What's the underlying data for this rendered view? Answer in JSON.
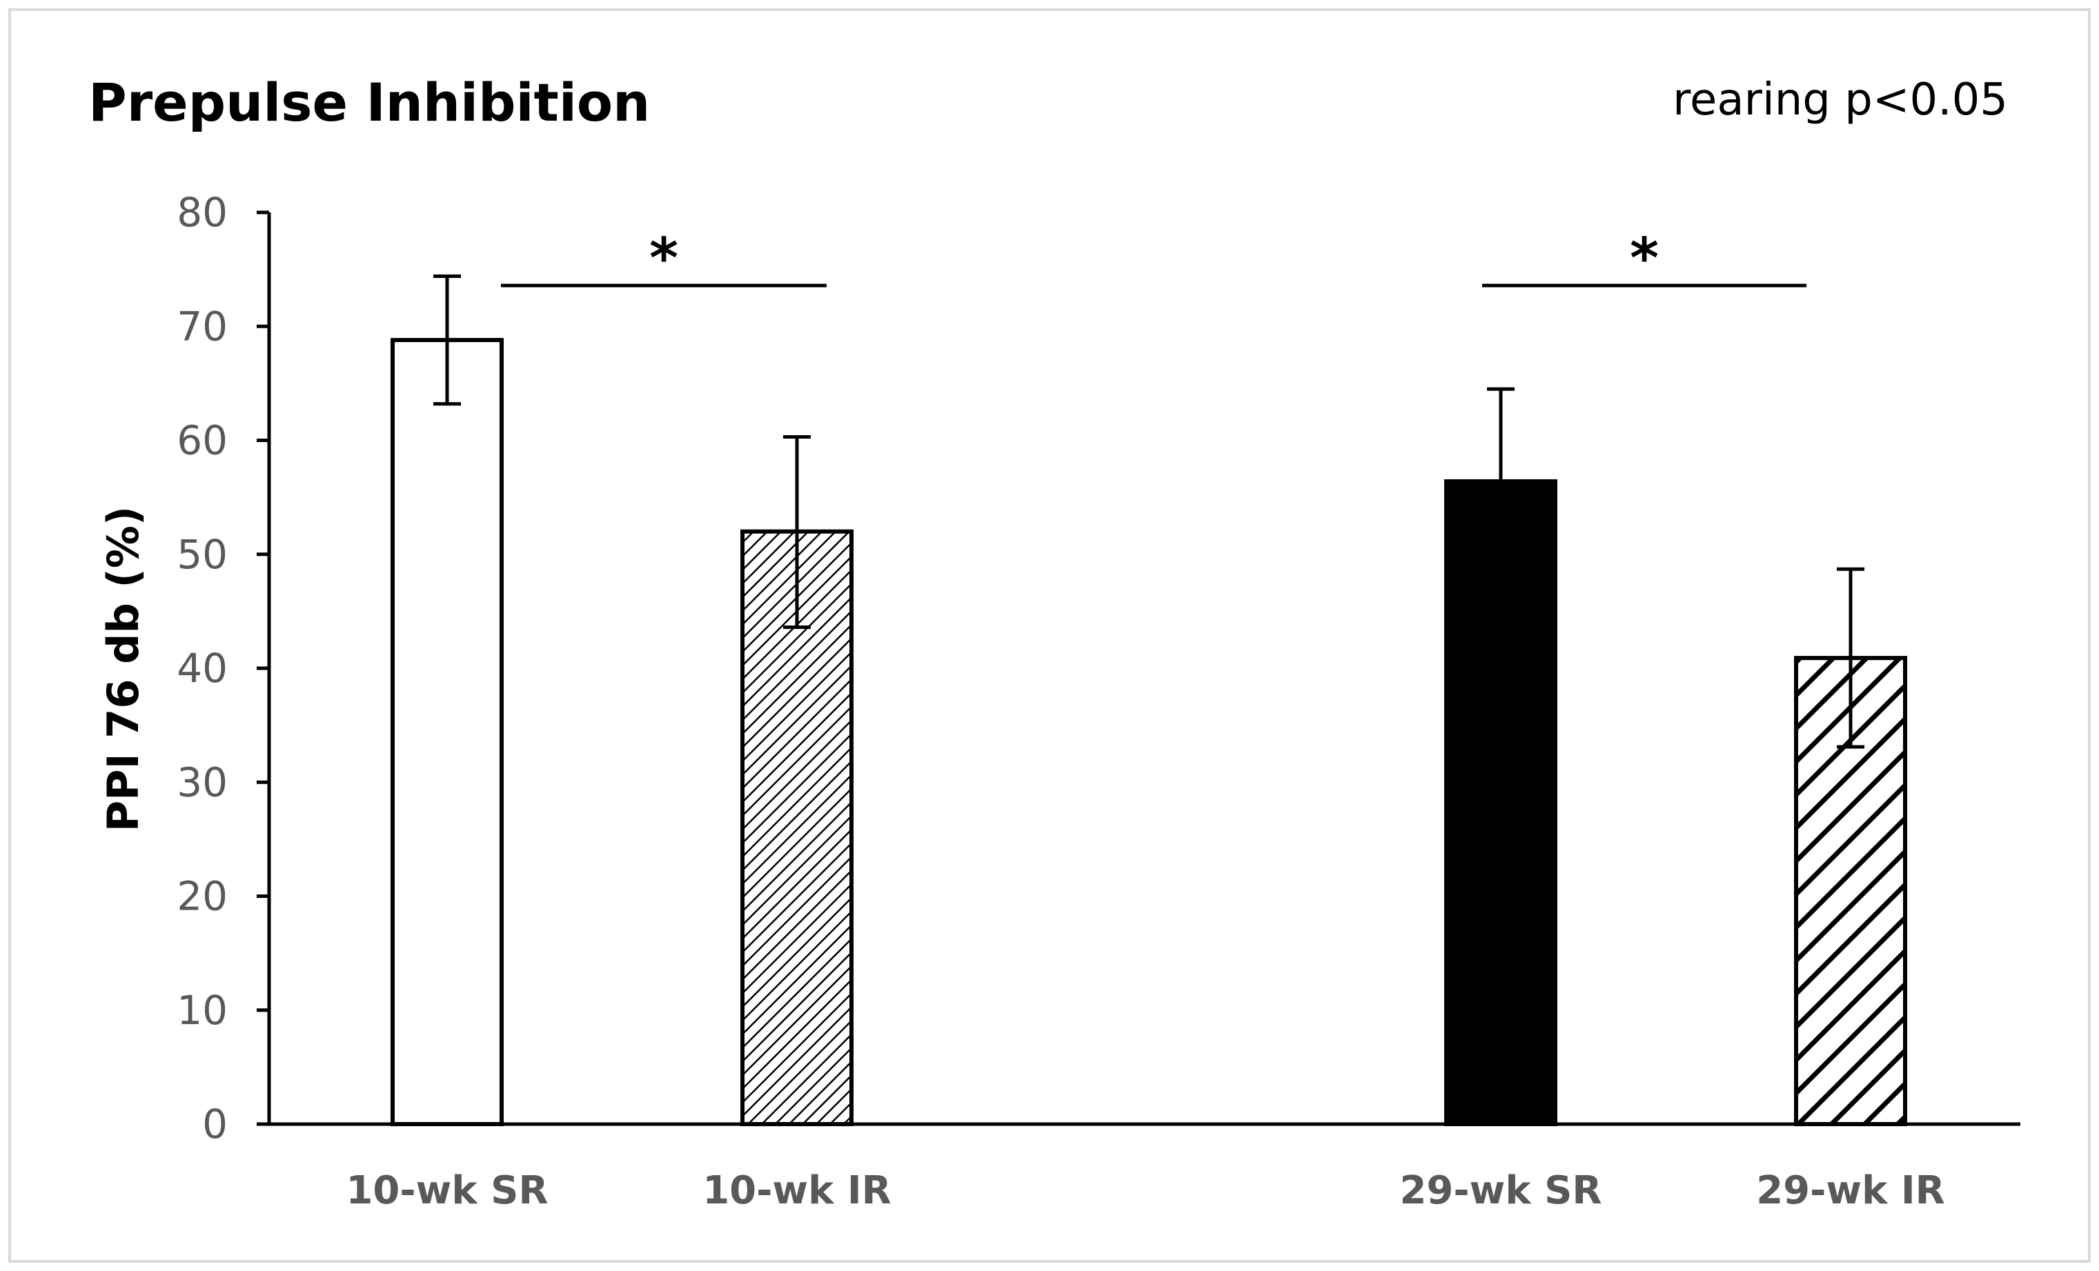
{
  "chart_data": {
    "type": "bar",
    "title": "Prepulse Inhibition",
    "annotation": "rearing p<0.05",
    "xlabel": "",
    "ylabel": "PPI 76 db (%)",
    "ylim": [
      0,
      80
    ],
    "yticks": [
      0,
      10,
      20,
      30,
      40,
      50,
      60,
      70,
      80
    ],
    "grid": false,
    "categories": [
      "10-wk SR",
      "10-wk IR",
      "29-wk SR",
      "29-wk IR"
    ],
    "values": [
      68.8,
      52.0,
      56.4,
      40.9
    ],
    "error_upper": [
      74.4,
      60.3,
      64.5,
      48.7
    ],
    "error_lower": [
      63.2,
      43.6,
      48.3,
      33.1
    ],
    "fills": [
      "white",
      "fine-hatch",
      "black",
      "coarse-hatch"
    ],
    "significance": [
      {
        "from": "10-wk SR",
        "to": "10-wk IR",
        "label": "*"
      },
      {
        "from": "29-wk SR",
        "to": "29-wk IR",
        "label": "*"
      }
    ]
  }
}
